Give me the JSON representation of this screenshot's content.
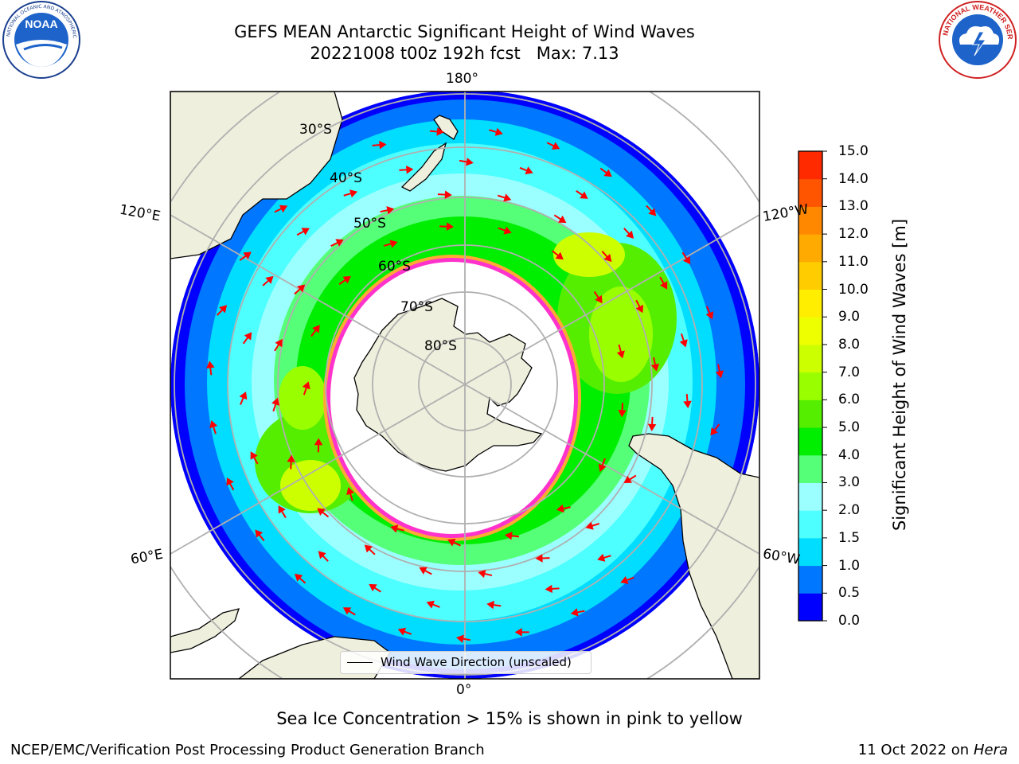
{
  "title": {
    "line1": "GEFS MEAN Antarctic Significant Height of Wind Waves",
    "line2": "20221008 t00z 192h fcst   Max: 7.13"
  },
  "logos": {
    "left": {
      "name": "NOAA",
      "ring_text": "NATIONAL OCEANIC AND ATMOSPHERIC ADMINISTRATION · U.S. DEPARTMENT OF COMMERCE"
    },
    "right": {
      "name": "NATIONAL WEATHER SERVICE"
    }
  },
  "map": {
    "projection": "south polar stereographic",
    "longitude_labels": [
      {
        "text": "180°",
        "pos": "top"
      },
      {
        "text": "120°E",
        "pos": "left-upper"
      },
      {
        "text": "120°W",
        "pos": "right-upper"
      },
      {
        "text": "60°E",
        "pos": "left-lower"
      },
      {
        "text": "60°W",
        "pos": "right-lower"
      },
      {
        "text": "0°",
        "pos": "bottom"
      }
    ],
    "latitude_labels": [
      "30°S",
      "40°S",
      "50°S",
      "60°S",
      "70°S",
      "80°S"
    ],
    "legend_label": "Wind Wave Direction (unscaled)",
    "colors": {
      "land": "#efefdd",
      "coast": "#000000",
      "grid": "#b0b0b0",
      "arrow": "#ff0000",
      "ice_edge": "#ff33cc",
      "ice_fringe": "#ffaa33"
    }
  },
  "colorbar": {
    "label": "Significant Height of Wind Waves [m]",
    "ticks": [
      "0.0",
      "0.5",
      "1.0",
      "1.5",
      "2.0",
      "3.0",
      "4.0",
      "5.0",
      "6.0",
      "7.0",
      "8.0",
      "9.0",
      "10.0",
      "11.0",
      "12.0",
      "13.0",
      "14.0",
      "15.0"
    ],
    "colors": [
      "#0000ff",
      "#0077ff",
      "#00ddff",
      "#4dffff",
      "#9cffff",
      "#55ff77",
      "#00ee00",
      "#55ee00",
      "#99ff00",
      "#ccff00",
      "#eeff00",
      "#ffee00",
      "#ffcc00",
      "#ffaa00",
      "#ff8800",
      "#ff5500",
      "#ff2a00"
    ]
  },
  "subcaption": "Sea Ice Concentration > 15% is shown in pink to yellow",
  "footer": {
    "left": "NCEP/EMC/Verification Post Processing Product Generation Branch",
    "right_prefix": "11 Oct 2022 on ",
    "right_host": "Hera"
  }
}
